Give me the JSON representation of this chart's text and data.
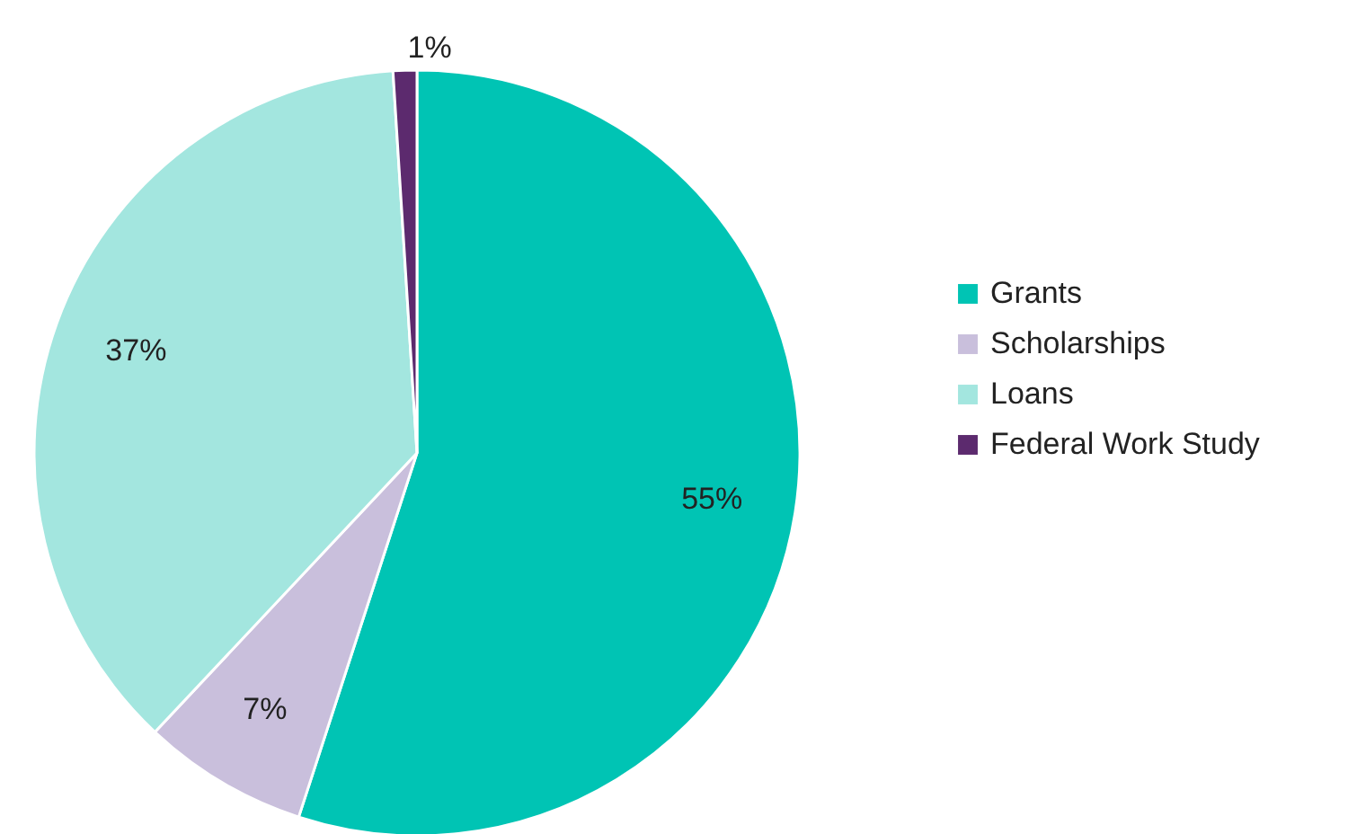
{
  "chart_data": {
    "type": "pie",
    "categories": [
      "Grants",
      "Scholarships",
      "Loans",
      "Federal Work Study"
    ],
    "values": [
      55,
      7,
      37,
      1
    ],
    "colors": [
      "#00c4b4",
      "#c9bfdc",
      "#a3e6df",
      "#5c2a6e"
    ],
    "value_labels": [
      "55%",
      "7%",
      "37%",
      "1%"
    ],
    "legend": "right"
  }
}
